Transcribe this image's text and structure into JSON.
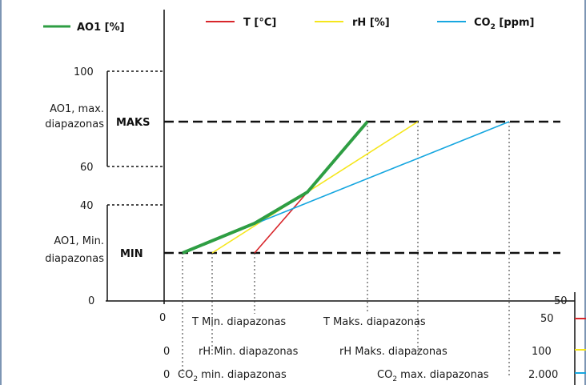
{
  "legend": [
    {
      "label": "AO1 [%]",
      "color": "#2e9e43"
    },
    {
      "label": "T [°C]",
      "color": "#d8262b"
    },
    {
      "label": "rH [%]",
      "color": "#f5e61c"
    },
    {
      "label": "CO",
      "sub": "2",
      "unit": " [ppm]",
      "color": "#17a7e0"
    }
  ],
  "y_axis": {
    "ticks": [
      "100",
      "60",
      "40",
      "0"
    ],
    "max_range_label": [
      "AO1, max.",
      "diapazonas"
    ],
    "min_range_label": [
      "AO1, Min.",
      "diapazonas"
    ],
    "maks": "MAKS",
    "min": "MIN"
  },
  "x_axis": {
    "rows": [
      {
        "start": "0",
        "min_label": "T Min. diapazonas",
        "max_label": "T Maks. diapazonas",
        "end": "50",
        "color": "#d8262b"
      },
      {
        "start": "0",
        "min_label": "rH Min. diapazonas",
        "max_label": "rH Maks. diapazonas",
        "end": "100",
        "color": "#f5e61c"
      },
      {
        "start": "0",
        "min_label_pre": "CO",
        "min_label_sub": "2",
        "min_label_post": " min. diapazonas",
        "max_label_pre": "CO",
        "max_label_sub": "2",
        "max_label_post": " max. diapazonas",
        "end": "2.000",
        "color": "#17a7e0"
      }
    ],
    "top_end": "50"
  }
}
